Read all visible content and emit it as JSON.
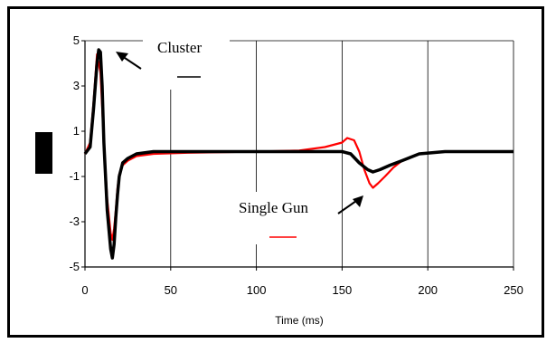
{
  "chart_data": {
    "type": "line",
    "xlabel": "Time (ms)",
    "ylabel": "",
    "xlim": [
      0,
      250
    ],
    "ylim": [
      -5,
      5
    ],
    "x_ticks": [
      0,
      50,
      100,
      150,
      200,
      250
    ],
    "y_ticks": [
      -5,
      -3,
      -1,
      1,
      3,
      5
    ],
    "grid": true,
    "series": [
      {
        "name": "Single Gun",
        "color": "#ff0000",
        "x": [
          0,
          3,
          5,
          7,
          9,
          11,
          13,
          15,
          16,
          17,
          18,
          19,
          20,
          22,
          25,
          30,
          40,
          60,
          100,
          125,
          140,
          150,
          153,
          157,
          160,
          163,
          166,
          168,
          171,
          175,
          180,
          185,
          195,
          210,
          230,
          250
        ],
        "y": [
          0,
          0.5,
          2.3,
          4.4,
          3.6,
          0.5,
          -2.0,
          -3.5,
          -3.8,
          -3.3,
          -2.5,
          -1.5,
          -0.9,
          -0.5,
          -0.3,
          -0.1,
          0.0,
          0.05,
          0.1,
          0.15,
          0.3,
          0.5,
          0.7,
          0.6,
          0.1,
          -0.7,
          -1.3,
          -1.5,
          -1.3,
          -1.0,
          -0.6,
          -0.3,
          0.0,
          0.1,
          0.1,
          0.1
        ]
      },
      {
        "name": "Cluster",
        "color": "#000000",
        "x": [
          0,
          3,
          5,
          7,
          8,
          9,
          10,
          11,
          13,
          15,
          16,
          17,
          18,
          19,
          20,
          22,
          25,
          30,
          40,
          60,
          100,
          150,
          155,
          160,
          165,
          168,
          172,
          178,
          185,
          195,
          210,
          230,
          250
        ],
        "y": [
          0,
          0.3,
          2.0,
          4.0,
          4.6,
          4.5,
          3.0,
          0.5,
          -2.5,
          -4.2,
          -4.6,
          -4.0,
          -2.8,
          -1.8,
          -1.0,
          -0.4,
          -0.2,
          0.0,
          0.1,
          0.1,
          0.1,
          0.1,
          0.0,
          -0.4,
          -0.7,
          -0.8,
          -0.7,
          -0.5,
          -0.3,
          0.0,
          0.1,
          0.1,
          0.1
        ]
      }
    ],
    "annotations": [
      {
        "text": "Cluster",
        "series": "Cluster"
      },
      {
        "text": "Single Gun",
        "series": "Single Gun"
      }
    ]
  }
}
